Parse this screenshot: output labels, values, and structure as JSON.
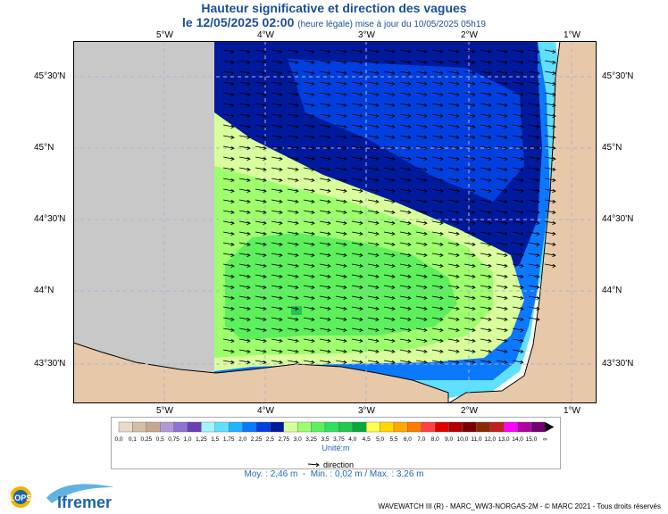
{
  "title": "Hauteur significative et direction des vagues",
  "subtitle_main": "le 12/05/2025 02:00",
  "subtitle_note": "(heure légale) mise à jour du 10/05/2025 05h19",
  "lon_ticks": [
    "5°W",
    "4°W",
    "3°W",
    "2°W",
    "1°W"
  ],
  "lat_ticks": [
    "45°30'N",
    "45°N",
    "44°30'N",
    "44°N",
    "43°30'N"
  ],
  "legend": {
    "values": [
      "0,0",
      "0,1",
      "0,25",
      "0,5",
      "0,75",
      "1,0",
      "1,25",
      "1,5",
      "1,75",
      "2,0",
      "2,25",
      "2,5",
      "2,75",
      "3,0",
      "3,25",
      "3,5",
      "3,75",
      "4,0",
      "4,5",
      "5,0",
      "5,5",
      "6,0",
      "7,0",
      "8,0",
      "9,0",
      "10,0",
      "11,0",
      "12,0",
      "13,0",
      "14,0",
      "15,0",
      "∞"
    ],
    "colors": [
      "#e9d9c8",
      "#d4bfa6",
      "#c6a88f",
      "#b09ad6",
      "#8f73d0",
      "#6a3fb3",
      "#a6f3ff",
      "#5fe0ff",
      "#1fb4ff",
      "#0a78ff",
      "#0040e0",
      "#001a9e",
      "#d9ff9c",
      "#9cff6b",
      "#5cf05c",
      "#2fe060",
      "#20c850",
      "#0aa83c",
      "#ffff50",
      "#ffd800",
      "#ffaa00",
      "#ff7a00",
      "#ff4040",
      "#e00000",
      "#b00000",
      "#7a0000",
      "#8a2a00",
      "#c02020",
      "#ff00ff",
      "#b000a0",
      "#700070"
    ],
    "unit": "Unité:m",
    "direction_label": "direction"
  },
  "stats": {
    "moy": "Moy. : 2,46 m",
    "sep": "-",
    "minmax": "Min. : 0,02 m / Max. : 3,26 m"
  },
  "credit": "WAVEWATCH III (R) - MARC_WW3-NORGAS-2M - © MARC 2021 - Tous droits réservés",
  "logos": {
    "lops": "LOPS",
    "ifremer": "Ifremer"
  },
  "colors": {
    "land": "#c8c8c8",
    "coast": "#e7c9a9",
    "title": "#1a4f9c"
  }
}
